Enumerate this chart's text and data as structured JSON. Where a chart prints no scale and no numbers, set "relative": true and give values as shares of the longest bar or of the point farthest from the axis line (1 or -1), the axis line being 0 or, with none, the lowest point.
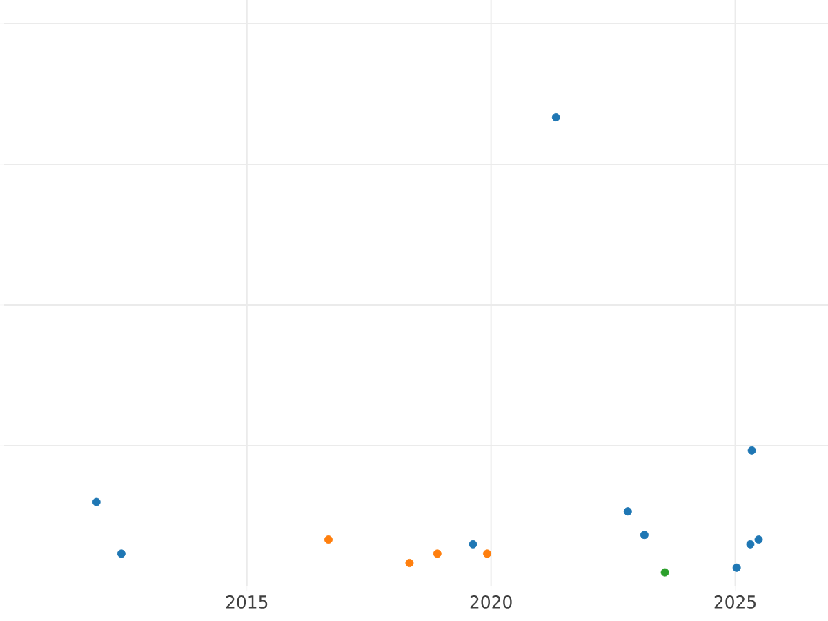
{
  "chart_data": {
    "type": "scatter",
    "relative": true,
    "xlim": [
      2010.03,
      2026.9
    ],
    "xticks": [
      2015,
      2020,
      2025
    ],
    "grid": true,
    "tick_labels": "x",
    "series": [
      {
        "color": "#1f77b4",
        "x": [
          2011.92,
          2012.43,
          2019.63,
          2021.33,
          2022.8,
          2023.14,
          2025.03,
          2025.31,
          2025.48,
          2025.34
        ],
        "values": [
          0.18,
          0.07,
          0.09,
          1,
          0.16,
          0.11,
          0.04,
          0.09,
          0.1,
          0.29
        ]
      },
      {
        "color": "#ff7f0e",
        "x": [
          2016.67,
          2018.33,
          2018.9,
          2019.92
        ],
        "values": [
          0.1,
          0.05,
          0.07,
          0.07
        ]
      },
      {
        "color": "#2ca02c",
        "x": [
          2023.56
        ],
        "values": [
          0.03
        ]
      }
    ]
  }
}
